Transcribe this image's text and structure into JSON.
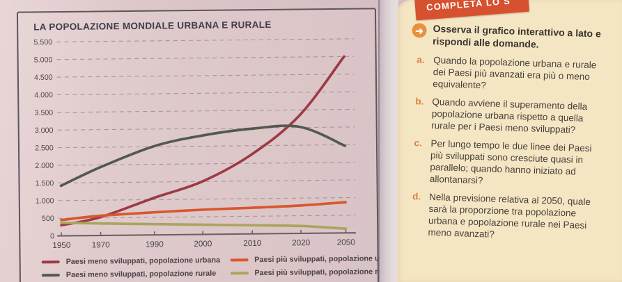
{
  "chart": {
    "title": "LA POPOLAZIONE MONDIALE URBANA E RURALE"
  },
  "chart_data": {
    "type": "line",
    "title": "LA POPOLAZIONE MONDIALE URBANA E RURALE",
    "x": [
      1950,
      1970,
      1990,
      2000,
      2010,
      2020,
      2050
    ],
    "x_tick_labels": [
      "1950",
      "1970",
      "1990",
      "2000",
      "2010",
      "2020",
      "2050"
    ],
    "ylim": [
      0,
      5500
    ],
    "y_ticks": [
      {
        "value": 5500,
        "label": "5.500"
      },
      {
        "value": 5000,
        "label": "5.000"
      },
      {
        "value": 4500,
        "label": "4.500"
      },
      {
        "value": 4000,
        "label": "4.000"
      },
      {
        "value": 3500,
        "label": "3.500"
      },
      {
        "value": 3000,
        "label": "3.000"
      },
      {
        "value": 2500,
        "label": "2.500"
      },
      {
        "value": 2000,
        "label": "2.000"
      },
      {
        "value": 1500,
        "label": "1.500"
      },
      {
        "value": 1000,
        "label": "1.000"
      },
      {
        "value": 500,
        "label": "500"
      },
      {
        "value": 0,
        "label": "0"
      }
    ],
    "grid": "horizontal-dashed",
    "legend_position": "bottom",
    "series": [
      {
        "name": "Paesi meno sviluppati, popolazione urbana",
        "color": "#9d3a45",
        "values": [
          300,
          520,
          1050,
          1500,
          2250,
          3350,
          5000
        ]
      },
      {
        "name": "Paesi meno sviluppati, popolazione rurale",
        "color": "#53594f",
        "values": [
          1420,
          1930,
          2510,
          2800,
          2980,
          3020,
          2470
        ]
      },
      {
        "name": "Paesi più sviluppati, popolazione urbana",
        "color": "#d8572e",
        "values": [
          450,
          560,
          640,
          700,
          740,
          790,
          870
        ]
      },
      {
        "name": "Paesi più sviluppati, popolazione rurale",
        "color": "#a9a55e",
        "values": [
          370,
          340,
          305,
          275,
          245,
          210,
          120
        ]
      }
    ]
  },
  "panel": {
    "ribbon_label": "COMPLETA LO S",
    "intro": "Osserva il grafico interattivo a lato e rispondi alle domande.",
    "arrow_glyph": "➜",
    "questions": [
      {
        "letter": "a.",
        "text": "Quando la popolazione urbana e rurale dei Paesi più avanzati era più o meno equivalente?"
      },
      {
        "letter": "b.",
        "text": "Quando avviene il superamento della popolazione urbana rispetto a quella rurale per i Paesi meno sviluppati?"
      },
      {
        "letter": "c.",
        "text": "Per lungo tempo le due linee dei Paesi più sviluppati sono cresciute quasi in parallelo; quando hanno iniziato ad allontanarsi?"
      },
      {
        "letter": "d.",
        "text": "Nella previsione relativa al 2050, quale sarà la proporzione tra popolazione urbana e popolazione rurale nei Paesi meno avanzati?"
      }
    ]
  },
  "colors": {
    "ribbon_bg": "#d6512f",
    "panel_bg": "#f5e6c3",
    "accent_orange": "#dc813c",
    "chart_border": "#5d5560",
    "grid_line": "#a6969a",
    "axis_line": "#6a5f65"
  }
}
